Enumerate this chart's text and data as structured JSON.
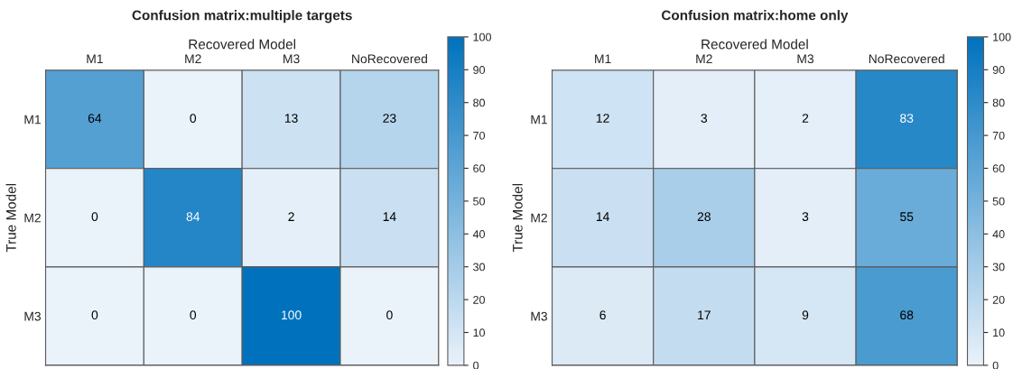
{
  "chart_data": [
    {
      "type": "heatmap",
      "title": "Confusion matrix:multiple targets",
      "xlabel": "Recovered Model",
      "ylabel": "True Model",
      "categories": [
        "M1",
        "M2",
        "M3",
        "NoRecovered"
      ],
      "y_categories": [
        "M1",
        "M2",
        "M3"
      ],
      "cells": [
        [
          64,
          0,
          13,
          23
        ],
        [
          0,
          84,
          2,
          14
        ],
        [
          0,
          0,
          100,
          0
        ]
      ],
      "clim": [
        0,
        100
      ],
      "cticks": [
        0,
        10,
        20,
        30,
        40,
        50,
        60,
        70,
        80,
        90,
        100
      ],
      "data_labels": true
    },
    {
      "type": "heatmap",
      "title": "Confusion matrix:home only",
      "xlabel": "Recovered Model",
      "ylabel": "True Model",
      "categories": [
        "M1",
        "M2",
        "M3",
        "NoRecovered"
      ],
      "y_categories": [
        "M1",
        "M2",
        "M3"
      ],
      "cells": [
        [
          12,
          3,
          2,
          83
        ],
        [
          14,
          28,
          3,
          55
        ],
        [
          6,
          17,
          9,
          68
        ]
      ],
      "clim": [
        0,
        100
      ],
      "cticks": [
        0,
        10,
        20,
        30,
        40,
        50,
        60,
        70,
        80,
        90,
        100
      ],
      "data_labels": true
    }
  ]
}
